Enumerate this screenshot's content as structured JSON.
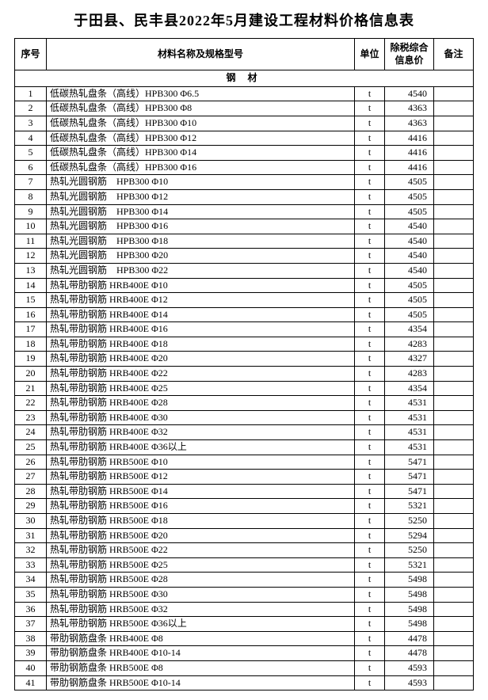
{
  "title": "于田县、民丰县2022年5月建设工程材料价格信息表",
  "columns": {
    "seq": "序号",
    "name": "材料名称及规格型号",
    "unit": "单位",
    "price": "除税综合信息价",
    "note": "备注"
  },
  "section_label": "钢 材",
  "rows": [
    {
      "seq": 1,
      "name": "低碳热轧盘条（高线）HPB300 Φ6.5",
      "unit": "t",
      "price": 4540,
      "note": ""
    },
    {
      "seq": 2,
      "name": "低碳热轧盘条（高线）HPB300 Φ8",
      "unit": "t",
      "price": 4363,
      "note": ""
    },
    {
      "seq": 3,
      "name": "低碳热轧盘条（高线）HPB300 Φ10",
      "unit": "t",
      "price": 4363,
      "note": ""
    },
    {
      "seq": 4,
      "name": "低碳热轧盘条（高线）HPB300 Φ12",
      "unit": "t",
      "price": 4416,
      "note": ""
    },
    {
      "seq": 5,
      "name": "低碳热轧盘条（高线）HPB300 Φ14",
      "unit": "t",
      "price": 4416,
      "note": ""
    },
    {
      "seq": 6,
      "name": "低碳热轧盘条（高线）HPB300 Φ16",
      "unit": "t",
      "price": 4416,
      "note": ""
    },
    {
      "seq": 7,
      "name": "热轧光圆钢筋　HPB300 Φ10",
      "unit": "t",
      "price": 4505,
      "note": ""
    },
    {
      "seq": 8,
      "name": "热轧光圆钢筋　HPB300 Φ12",
      "unit": "t",
      "price": 4505,
      "note": ""
    },
    {
      "seq": 9,
      "name": "热轧光圆钢筋　HPB300 Φ14",
      "unit": "t",
      "price": 4505,
      "note": ""
    },
    {
      "seq": 10,
      "name": "热轧光圆钢筋　HPB300 Φ16",
      "unit": "t",
      "price": 4540,
      "note": ""
    },
    {
      "seq": 11,
      "name": "热轧光圆钢筋　HPB300 Φ18",
      "unit": "t",
      "price": 4540,
      "note": ""
    },
    {
      "seq": 12,
      "name": "热轧光圆钢筋　HPB300 Φ20",
      "unit": "t",
      "price": 4540,
      "note": ""
    },
    {
      "seq": 13,
      "name": "热轧光圆钢筋　HPB300 Φ22",
      "unit": "t",
      "price": 4540,
      "note": ""
    },
    {
      "seq": 14,
      "name": "热轧带肋钢筋 HRB400E Φ10",
      "unit": "t",
      "price": 4505,
      "note": ""
    },
    {
      "seq": 15,
      "name": "热轧带肋钢筋 HRB400E Φ12",
      "unit": "t",
      "price": 4505,
      "note": ""
    },
    {
      "seq": 16,
      "name": "热轧带肋钢筋 HRB400E Φ14",
      "unit": "t",
      "price": 4505,
      "note": ""
    },
    {
      "seq": 17,
      "name": "热轧带肋钢筋 HRB400E Φ16",
      "unit": "t",
      "price": 4354,
      "note": ""
    },
    {
      "seq": 18,
      "name": "热轧带肋钢筋 HRB400E Φ18",
      "unit": "t",
      "price": 4283,
      "note": ""
    },
    {
      "seq": 19,
      "name": "热轧带肋钢筋 HRB400E Φ20",
      "unit": "t",
      "price": 4327,
      "note": ""
    },
    {
      "seq": 20,
      "name": "热轧带肋钢筋 HRB400E Φ22",
      "unit": "t",
      "price": 4283,
      "note": ""
    },
    {
      "seq": 21,
      "name": "热轧带肋钢筋 HRB400E Φ25",
      "unit": "t",
      "price": 4354,
      "note": ""
    },
    {
      "seq": 22,
      "name": "热轧带肋钢筋 HRB400E Φ28",
      "unit": "t",
      "price": 4531,
      "note": ""
    },
    {
      "seq": 23,
      "name": "热轧带肋钢筋 HRB400E Φ30",
      "unit": "t",
      "price": 4531,
      "note": ""
    },
    {
      "seq": 24,
      "name": "热轧带肋钢筋 HRB400E Φ32",
      "unit": "t",
      "price": 4531,
      "note": ""
    },
    {
      "seq": 25,
      "name": "热轧带肋钢筋 HRB400E Φ36以上",
      "unit": "t",
      "price": 4531,
      "note": ""
    },
    {
      "seq": 26,
      "name": "热轧带肋钢筋 HRB500E Φ10",
      "unit": "t",
      "price": 5471,
      "note": ""
    },
    {
      "seq": 27,
      "name": "热轧带肋钢筋 HRB500E Φ12",
      "unit": "t",
      "price": 5471,
      "note": ""
    },
    {
      "seq": 28,
      "name": "热轧带肋钢筋 HRB500E Φ14",
      "unit": "t",
      "price": 5471,
      "note": ""
    },
    {
      "seq": 29,
      "name": "热轧带肋钢筋 HRB500E Φ16",
      "unit": "t",
      "price": 5321,
      "note": ""
    },
    {
      "seq": 30,
      "name": "热轧带肋钢筋 HRB500E Φ18",
      "unit": "t",
      "price": 5250,
      "note": ""
    },
    {
      "seq": 31,
      "name": "热轧带肋钢筋 HRB500E Φ20",
      "unit": "t",
      "price": 5294,
      "note": ""
    },
    {
      "seq": 32,
      "name": "热轧带肋钢筋 HRB500E Φ22",
      "unit": "t",
      "price": 5250,
      "note": ""
    },
    {
      "seq": 33,
      "name": "热轧带肋钢筋 HRB500E Φ25",
      "unit": "t",
      "price": 5321,
      "note": ""
    },
    {
      "seq": 34,
      "name": "热轧带肋钢筋 HRB500E Φ28",
      "unit": "t",
      "price": 5498,
      "note": ""
    },
    {
      "seq": 35,
      "name": "热轧带肋钢筋 HRB500E Φ30",
      "unit": "t",
      "price": 5498,
      "note": ""
    },
    {
      "seq": 36,
      "name": "热轧带肋钢筋 HRB500E Φ32",
      "unit": "t",
      "price": 5498,
      "note": ""
    },
    {
      "seq": 37,
      "name": "热轧带肋钢筋 HRB500E Φ36以上",
      "unit": "t",
      "price": 5498,
      "note": ""
    },
    {
      "seq": 38,
      "name": "带肋钢筋盘条 HRB400E Φ8",
      "unit": "t",
      "price": 4478,
      "note": ""
    },
    {
      "seq": 39,
      "name": "带肋钢筋盘条 HRB400E Φ10-14",
      "unit": "t",
      "price": 4478,
      "note": ""
    },
    {
      "seq": 40,
      "name": "带肋钢筋盘条 HRB500E Φ8",
      "unit": "t",
      "price": 4593,
      "note": ""
    },
    {
      "seq": 41,
      "name": "带肋钢筋盘条 HRB500E Φ10-14",
      "unit": "t",
      "price": 4593,
      "note": ""
    }
  ],
  "styling": {
    "background_color": "#ffffff",
    "border_color": "#000000",
    "title_fontsize": 18,
    "header_fontsize": 12,
    "cell_fontsize": 12,
    "font_family": "SimSun"
  }
}
